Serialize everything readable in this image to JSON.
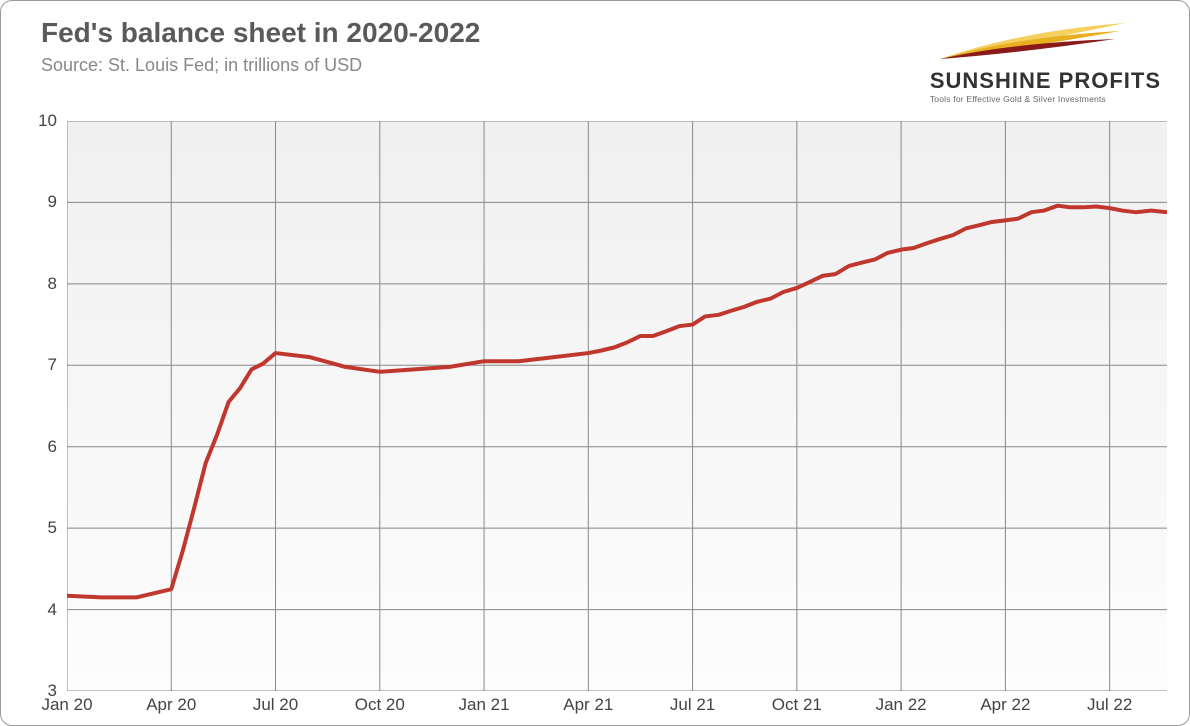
{
  "chart": {
    "type": "line",
    "title": "Fed's balance sheet in 2020-2022",
    "subtitle": "Source: St. Louis Fed; in trillions of USD",
    "title_fontsize": 28,
    "subtitle_fontsize": 18,
    "title_color": "#5a5a5a",
    "subtitle_color": "#888888",
    "background_gradient_top": "#f0f0f0",
    "background_gradient_bottom": "#fdfdfd",
    "grid_color": "#888888",
    "line_color": "#c0372d",
    "line_width": 4,
    "ylim": [
      3,
      10
    ],
    "yticks": [
      3,
      4,
      5,
      6,
      7,
      8,
      9,
      10
    ],
    "xticks": [
      "Jan 20",
      "Apr 20",
      "Jul 20",
      "Oct 20",
      "Jan 21",
      "Apr 21",
      "Jul 21",
      "Oct 21",
      "Jan 22",
      "Apr 22",
      "Jul 22"
    ],
    "axis_label_fontsize": 17,
    "axis_label_color": "#444444",
    "series": [
      {
        "name": "balance_sheet",
        "color": "#c0372d",
        "x": [
          0,
          0.33,
          0.67,
          1.0,
          1.11,
          1.22,
          1.33,
          1.44,
          1.55,
          1.66,
          1.77,
          1.88,
          2.0,
          2.33,
          2.67,
          3.0,
          3.33,
          3.67,
          4.0,
          4.33,
          4.67,
          5.0,
          5.12,
          5.25,
          5.37,
          5.5,
          5.62,
          5.75,
          5.87,
          6.0,
          6.12,
          6.25,
          6.37,
          6.5,
          6.62,
          6.75,
          6.87,
          7.0,
          7.12,
          7.25,
          7.37,
          7.5,
          7.62,
          7.75,
          7.87,
          8.0,
          8.12,
          8.25,
          8.37,
          8.5,
          8.62,
          8.75,
          8.87,
          9.0,
          9.12,
          9.25,
          9.37,
          9.5,
          9.62,
          9.75,
          9.87,
          10.0,
          10.12,
          10.25,
          10.4,
          10.55
        ],
        "y": [
          4.17,
          4.15,
          4.15,
          4.25,
          4.72,
          5.25,
          5.8,
          6.15,
          6.55,
          6.72,
          6.95,
          7.02,
          7.15,
          7.1,
          6.98,
          6.92,
          6.95,
          6.98,
          7.05,
          7.05,
          7.1,
          7.15,
          7.18,
          7.22,
          7.28,
          7.36,
          7.36,
          7.42,
          7.48,
          7.5,
          7.6,
          7.62,
          7.67,
          7.72,
          7.78,
          7.82,
          7.9,
          7.95,
          8.02,
          8.1,
          8.12,
          8.22,
          8.26,
          8.3,
          8.38,
          8.42,
          8.44,
          8.5,
          8.55,
          8.6,
          8.68,
          8.72,
          8.76,
          8.78,
          8.8,
          8.88,
          8.9,
          8.96,
          8.94,
          8.94,
          8.95,
          8.93,
          8.9,
          8.88,
          8.9,
          8.88
        ]
      }
    ]
  },
  "logo": {
    "name": "SUNSHINE PROFITS",
    "tagline": "Tools for Effective Gold & Silver Investments",
    "swoosh_colors": [
      "#8a1a1a",
      "#e8b020",
      "#f5d060"
    ]
  }
}
